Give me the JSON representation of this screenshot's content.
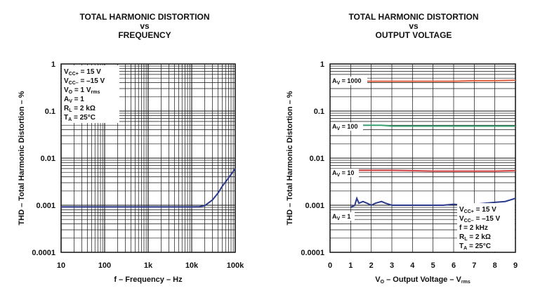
{
  "chart_data": [
    {
      "type": "line",
      "title_lines": [
        "TOTAL HARMONIC DISTORTION",
        "vs",
        "FREQUENCY"
      ],
      "xlabel": "f – Frequency – Hz",
      "ylabel": "THD – Total Harmonic Distortion – %",
      "xscale": "log",
      "yscale": "log",
      "xlim": [
        10,
        100000
      ],
      "ylim": [
        0.0001,
        1
      ],
      "xticks": [
        "10",
        "100",
        "1k",
        "10k",
        "100k"
      ],
      "yticks": [
        "1",
        "0.1",
        "0.01",
        "0.001",
        "0.0001"
      ],
      "grid": true,
      "conditions": [
        {
          "main": "V",
          "sub": "CC+",
          "rest": " = 15 V"
        },
        {
          "main": "V",
          "sub": "CC–",
          "rest": " = –15 V"
        },
        {
          "main": "V",
          "sub": "O",
          "rest": " = 1 V",
          "sub2": "rms"
        },
        {
          "main": "A",
          "sub": "V",
          "rest": " = 1"
        },
        {
          "main": "R",
          "sub": "L",
          "rest": " = 2 kΩ"
        },
        {
          "main": "T",
          "sub": "A",
          "rest": " = 25°C"
        }
      ],
      "series": [
        {
          "color": "#2b3a8c",
          "x": [
            10,
            100,
            1000,
            5000,
            10000,
            15000,
            20000,
            30000,
            40000,
            50000,
            70000,
            100000
          ],
          "y": [
            0.00092,
            0.00092,
            0.00092,
            0.00092,
            0.00092,
            0.00093,
            0.00098,
            0.0013,
            0.0018,
            0.0025,
            0.0038,
            0.006
          ]
        }
      ]
    },
    {
      "type": "line",
      "title_lines": [
        "TOTAL HARMONIC DISTORTION",
        "vs",
        "OUTPUT VOLTAGE"
      ],
      "xlabel_parts": {
        "a": "V",
        "a_sub": "O",
        "b": " – Output Voltage – V",
        "b_sub": "rms"
      },
      "ylabel": "THD – Total Harmonic Distortion – %",
      "xscale": "linear",
      "yscale": "log",
      "xlim": [
        0,
        9
      ],
      "ylim": [
        0.0001,
        1
      ],
      "xticks": [
        "0",
        "1",
        "2",
        "3",
        "4",
        "5",
        "6",
        "7",
        "8",
        "9"
      ],
      "yticks": [
        "1",
        "0.1",
        "0.01",
        "0.001",
        "0.0001"
      ],
      "grid": true,
      "conditions": [
        {
          "main": "V",
          "sub": "CC+",
          "rest": " = 15 V"
        },
        {
          "main": "V",
          "sub": "CC–",
          "rest": " = –15 V"
        },
        {
          "main": "f",
          "sub": "",
          "rest": " = 2 kHz"
        },
        {
          "main": "R",
          "sub": "L",
          "rest": " = 2 kΩ"
        },
        {
          "main": "T",
          "sub": "A",
          "rest": " = 25°C"
        }
      ],
      "series": [
        {
          "name": "A_V = 1000",
          "label_main": "A",
          "label_sub": "V",
          "label_rest": " = 1000",
          "color": "#e06040",
          "x": [
            1,
            2,
            3,
            4,
            5,
            6,
            7,
            8,
            9
          ],
          "y": [
            0.43,
            0.43,
            0.43,
            0.43,
            0.43,
            0.43,
            0.44,
            0.44,
            0.45
          ]
        },
        {
          "name": "A_V = 100",
          "label_main": "A",
          "label_sub": "V",
          "label_rest": " = 100",
          "color": "#3aa070",
          "x": [
            1,
            1.5,
            2,
            2.5,
            3,
            4,
            5,
            6,
            7,
            8,
            9
          ],
          "y": [
            0.052,
            0.05,
            0.05,
            0.05,
            0.048,
            0.048,
            0.048,
            0.048,
            0.048,
            0.048,
            0.048
          ]
        },
        {
          "name": "A_V = 10",
          "label_main": "A",
          "label_sub": "V",
          "label_rest": " = 10",
          "color": "#d04040",
          "x": [
            1,
            2,
            3,
            4,
            5,
            6,
            7,
            8,
            9
          ],
          "y": [
            0.0055,
            0.0055,
            0.0055,
            0.0054,
            0.0053,
            0.0053,
            0.0053,
            0.0053,
            0.0054
          ]
        },
        {
          "name": "A_V = 1",
          "label_main": "A",
          "label_sub": "V",
          "label_rest": " = 1",
          "color": "#2b3a8c",
          "x": [
            1,
            1.2,
            1.3,
            1.4,
            1.6,
            1.8,
            2,
            2.2,
            2.5,
            2.7,
            3,
            3.5,
            4,
            4.5,
            5,
            5.5,
            6,
            6.5,
            7,
            7.5,
            8,
            8.5,
            9
          ],
          "y": [
            0.0009,
            0.001,
            0.0014,
            0.0011,
            0.0012,
            0.0011,
            0.001,
            0.0011,
            0.0012,
            0.0011,
            0.001,
            0.001,
            0.001,
            0.001,
            0.001,
            0.001,
            0.00105,
            0.001,
            0.00105,
            0.0011,
            0.00115,
            0.0012,
            0.0014
          ]
        }
      ]
    }
  ]
}
